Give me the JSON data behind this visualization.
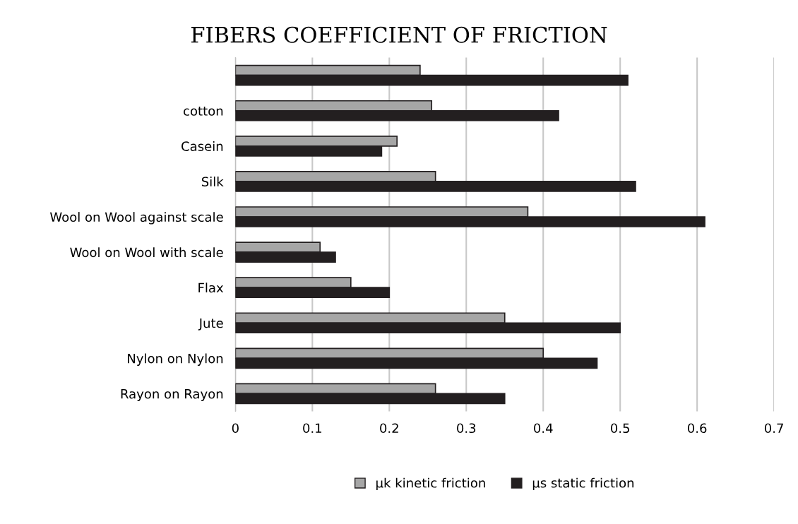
{
  "chart_data": {
    "type": "bar",
    "orientation": "horizontal",
    "title": "FIBERS COEFFICIENT OF FRICTION",
    "categories": [
      null,
      "cotton",
      "Casein",
      "Silk",
      "Wool on Wool against scale",
      "Wool on Wool with scale",
      "Flax",
      "Jute",
      "Nylon on Nylon",
      "Rayon on Rayon"
    ],
    "series": [
      {
        "name": "µk kinetic friction",
        "color": "#a6a6a6",
        "values": [
          0.24,
          0.255,
          0.21,
          0.26,
          0.38,
          0.11,
          0.15,
          0.35,
          0.4,
          0.26
        ]
      },
      {
        "name": "µs static friction",
        "color": "#231f20",
        "values": [
          0.51,
          0.42,
          0.19,
          0.52,
          0.61,
          0.13,
          0.2,
          0.5,
          0.47,
          0.35
        ]
      }
    ],
    "xlim": [
      0,
      0.7
    ],
    "xticks": [
      0,
      0.1,
      0.2,
      0.3,
      0.4,
      0.5,
      0.6,
      0.7
    ],
    "grid": "x",
    "legend": "bottom"
  }
}
